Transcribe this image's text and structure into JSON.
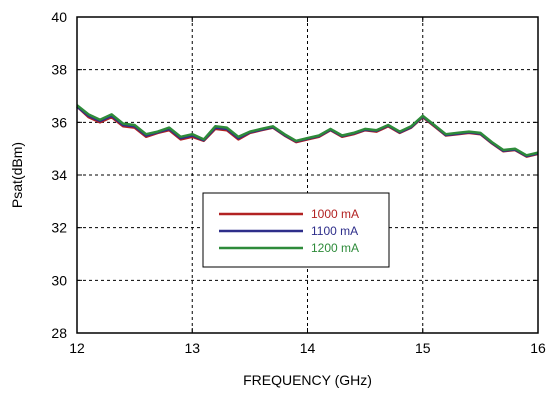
{
  "chart_data": {
    "type": "line",
    "xlabel": "FREQUENCY (GHz)",
    "ylabel": "Psat(dBm)",
    "xlim": [
      12,
      16
    ],
    "ylim": [
      28,
      40
    ],
    "xticks": [
      12,
      13,
      14,
      15,
      16
    ],
    "yticks": [
      28,
      30,
      32,
      34,
      36,
      38,
      40
    ],
    "grid": true,
    "legend_position": "center-left",
    "series": [
      {
        "name": "1000 mA",
        "color": "#b22222",
        "x": [
          12.0,
          12.1,
          12.2,
          12.3,
          12.4,
          12.5,
          12.6,
          12.7,
          12.8,
          12.9,
          13.0,
          13.1,
          13.2,
          13.3,
          13.4,
          13.5,
          13.6,
          13.7,
          13.8,
          13.9,
          14.0,
          14.1,
          14.2,
          14.3,
          14.4,
          14.5,
          14.6,
          14.7,
          14.8,
          14.9,
          15.0,
          15.1,
          15.2,
          15.3,
          15.4,
          15.5,
          15.6,
          15.7,
          15.8,
          15.9,
          16.0
        ],
        "values": [
          36.6,
          36.2,
          36.0,
          36.2,
          35.85,
          35.8,
          35.45,
          35.6,
          35.7,
          35.35,
          35.45,
          35.3,
          35.75,
          35.7,
          35.35,
          35.6,
          35.7,
          35.8,
          35.5,
          35.25,
          35.35,
          35.45,
          35.7,
          35.45,
          35.55,
          35.7,
          35.65,
          35.85,
          35.6,
          35.8,
          36.2,
          35.85,
          35.5,
          35.55,
          35.6,
          35.55,
          35.2,
          34.9,
          34.95,
          34.7,
          34.8
        ]
      },
      {
        "name": "1100 mA",
        "color": "#2e2e8a",
        "x": [
          12.0,
          12.1,
          12.2,
          12.3,
          12.4,
          12.5,
          12.6,
          12.7,
          12.8,
          12.9,
          13.0,
          13.1,
          13.2,
          13.3,
          13.4,
          13.5,
          13.6,
          13.7,
          13.8,
          13.9,
          14.0,
          14.1,
          14.2,
          14.3,
          14.4,
          14.5,
          14.6,
          14.7,
          14.8,
          14.9,
          15.0,
          15.1,
          15.2,
          15.3,
          15.4,
          15.5,
          15.6,
          15.7,
          15.8,
          15.9,
          16.0
        ],
        "values": [
          36.6,
          36.25,
          36.05,
          36.25,
          35.9,
          35.85,
          35.5,
          35.62,
          35.75,
          35.4,
          35.5,
          35.32,
          35.8,
          35.75,
          35.4,
          35.62,
          35.72,
          35.82,
          35.52,
          35.28,
          35.38,
          35.48,
          35.72,
          35.48,
          35.58,
          35.72,
          35.68,
          35.88,
          35.62,
          35.82,
          36.22,
          35.88,
          35.52,
          35.57,
          35.62,
          35.57,
          35.22,
          34.92,
          34.97,
          34.72,
          34.82
        ]
      },
      {
        "name": "1200 mA",
        "color": "#2e8b3a",
        "x": [
          12.0,
          12.1,
          12.2,
          12.3,
          12.4,
          12.5,
          12.6,
          12.7,
          12.8,
          12.9,
          13.0,
          13.1,
          13.2,
          13.3,
          13.4,
          13.5,
          13.6,
          13.7,
          13.8,
          13.9,
          14.0,
          14.1,
          14.2,
          14.3,
          14.4,
          14.5,
          14.6,
          14.7,
          14.8,
          14.9,
          15.0,
          15.1,
          15.2,
          15.3,
          15.4,
          15.5,
          15.6,
          15.7,
          15.8,
          15.9,
          16.0
        ],
        "values": [
          36.65,
          36.3,
          36.1,
          36.3,
          35.95,
          35.9,
          35.55,
          35.65,
          35.8,
          35.45,
          35.55,
          35.35,
          35.85,
          35.8,
          35.45,
          35.65,
          35.75,
          35.85,
          35.55,
          35.3,
          35.4,
          35.5,
          35.75,
          35.5,
          35.6,
          35.75,
          35.7,
          35.9,
          35.65,
          35.85,
          36.25,
          35.9,
          35.55,
          35.6,
          35.65,
          35.6,
          35.25,
          34.95,
          35.0,
          34.75,
          34.85
        ]
      }
    ]
  }
}
